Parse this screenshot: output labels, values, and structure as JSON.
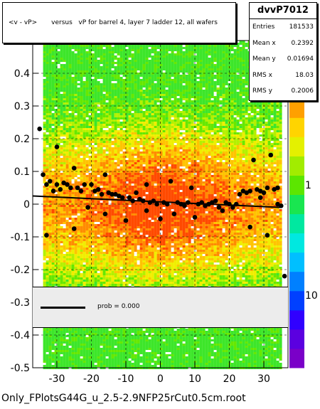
{
  "title": "<v - vP>       versus   vP for barrel 4, layer 7 ladder 12, all wafers",
  "stats": {
    "name": "dvvP7012",
    "rows": [
      {
        "label": "Entries",
        "value": "181533"
      },
      {
        "label": "Mean x",
        "value": "0.2392"
      },
      {
        "label": "Mean y",
        "value": "0.01694"
      },
      {
        "label": "RMS x",
        "value": "18.03"
      },
      {
        "label": "RMS y",
        "value": "0.2006"
      }
    ]
  },
  "fit": {
    "label": "prob = 0.000"
  },
  "footer": "Only_FPlotsG44G_u_2.5-2.9NFP25rCut0.5cm.root",
  "chart_data": {
    "type": "heatmap",
    "title": "<v - vP>       versus   vP for barrel 4, layer 7 ladder 12, all wafers",
    "xlim": [
      -37,
      37
    ],
    "ylim": [
      -0.5,
      0.5
    ],
    "x_ticks": [
      -30,
      -20,
      -10,
      0,
      10,
      20,
      30
    ],
    "y_ticks": [
      -0.5,
      -0.4,
      -0.3,
      -0.2,
      -0.1,
      0,
      0.1,
      0.2,
      0.3,
      0.4
    ],
    "z_scale": "log",
    "z_tick_labels": [
      "10",
      "1",
      "10"
    ],
    "grid": true,
    "profile_points": [
      {
        "x": -35,
        "y": 0.23
      },
      {
        "x": -34,
        "y": 0.09
      },
      {
        "x": -33,
        "y": 0.06
      },
      {
        "x": -32,
        "y": 0.07
      },
      {
        "x": -31,
        "y": 0.04
      },
      {
        "x": -30,
        "y": 0.175
      },
      {
        "x": -30,
        "y": 0.06
      },
      {
        "x": -29,
        "y": 0.045
      },
      {
        "x": -28,
        "y": 0.065
      },
      {
        "x": -27,
        "y": 0.06
      },
      {
        "x": -26,
        "y": 0.05
      },
      {
        "x": -25,
        "y": 0.11
      },
      {
        "x": -25,
        "y": -0.075
      },
      {
        "x": -24,
        "y": 0.05
      },
      {
        "x": -23,
        "y": 0.04
      },
      {
        "x": -22,
        "y": 0.06
      },
      {
        "x": -21,
        "y": -0.01
      },
      {
        "x": -20,
        "y": 0.06
      },
      {
        "x": -19,
        "y": 0.04
      },
      {
        "x": -18,
        "y": 0.045
      },
      {
        "x": -17,
        "y": 0.03
      },
      {
        "x": -16,
        "y": 0.09
      },
      {
        "x": -16,
        "y": -0.03
      },
      {
        "x": -15,
        "y": 0.035
      },
      {
        "x": -14,
        "y": 0.03
      },
      {
        "x": -13,
        "y": 0.03
      },
      {
        "x": -12,
        "y": 0.025
      },
      {
        "x": -11,
        "y": 0.02
      },
      {
        "x": -10,
        "y": -0.05
      },
      {
        "x": -9,
        "y": 0.02
      },
      {
        "x": -8,
        "y": 0.01
      },
      {
        "x": -7,
        "y": 0.035
      },
      {
        "x": -6,
        "y": 0.015
      },
      {
        "x": -5,
        "y": 0.01
      },
      {
        "x": -4,
        "y": 0.06
      },
      {
        "x": -4,
        "y": -0.02
      },
      {
        "x": -3,
        "y": 0.005
      },
      {
        "x": -2,
        "y": 0.01
      },
      {
        "x": -1,
        "y": 0.0
      },
      {
        "x": 0,
        "y": -0.045
      },
      {
        "x": 1,
        "y": 0.005
      },
      {
        "x": 2,
        "y": 0.0
      },
      {
        "x": 3,
        "y": 0.07
      },
      {
        "x": 4,
        "y": -0.03
      },
      {
        "x": 5,
        "y": 0.005
      },
      {
        "x": 6,
        "y": 0.0
      },
      {
        "x": 7,
        "y": -0.005
      },
      {
        "x": 8,
        "y": 0.005
      },
      {
        "x": 9,
        "y": 0.05
      },
      {
        "x": 10,
        "y": -0.04
      },
      {
        "x": 11,
        "y": 0.0
      },
      {
        "x": 12,
        "y": 0.005
      },
      {
        "x": 13,
        "y": -0.005
      },
      {
        "x": 14,
        "y": 0.0
      },
      {
        "x": 15,
        "y": 0.005
      },
      {
        "x": 16,
        "y": 0.01
      },
      {
        "x": 17,
        "y": -0.01
      },
      {
        "x": 18,
        "y": -0.02
      },
      {
        "x": 19,
        "y": 0.005
      },
      {
        "x": 20,
        "y": 0.0
      },
      {
        "x": 21,
        "y": -0.01
      },
      {
        "x": 22,
        "y": 0.0
      },
      {
        "x": 23,
        "y": 0.03
      },
      {
        "x": 24,
        "y": 0.04
      },
      {
        "x": 25,
        "y": 0.035
      },
      {
        "x": 26,
        "y": 0.04
      },
      {
        "x": 26,
        "y": -0.07
      },
      {
        "x": 27,
        "y": 0.135
      },
      {
        "x": 28,
        "y": 0.045
      },
      {
        "x": 29,
        "y": 0.04
      },
      {
        "x": 30,
        "y": 0.035
      },
      {
        "x": 31,
        "y": 0.05
      },
      {
        "x": 31,
        "y": -0.095
      },
      {
        "x": 32,
        "y": 0.15
      },
      {
        "x": 33,
        "y": 0.045
      },
      {
        "x": 34,
        "y": 0.05
      },
      {
        "x": 34,
        "y": 0.0
      },
      {
        "x": 35,
        "y": -0.005
      },
      {
        "x": 36,
        "y": -0.22
      },
      {
        "x": 29,
        "y": 0.02
      },
      {
        "x": -33,
        "y": -0.095
      }
    ],
    "fit_line": {
      "x": [
        -37,
        35
      ],
      "y": [
        0.025,
        -0.01
      ]
    }
  }
}
